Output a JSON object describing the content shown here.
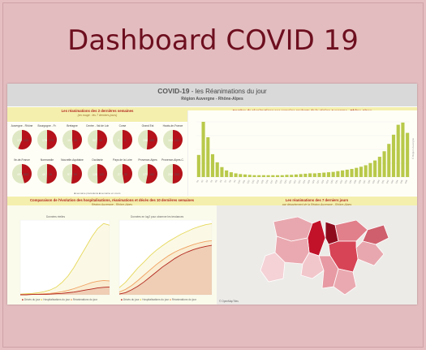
{
  "page": {
    "title": "Dashboard COVID 19"
  },
  "header": {
    "title_prefix": "COVID-19",
    "title_suffix": "- les Réanimations du jour",
    "region": "Région Auvergne - Rhône-Alpes"
  },
  "pies_panel": {
    "title": "Les réanimations des 2 dernières semaines",
    "subtitle": "(en rouge : les 7 derniers jours)",
    "items": [
      {
        "label": "Auvergne - Rhône",
        "a": 171,
        "b": 133
      },
      {
        "label": "Bourgogne - Fr.",
        "a": 176,
        "b": 174
      },
      {
        "label": "Bretagne",
        "a": 19,
        "b": 20
      },
      {
        "label": "Centre - Val de Loire",
        "a": 52,
        "b": 50
      },
      {
        "label": "Corse",
        "a": 3,
        "b": 3
      },
      {
        "label": "Grand Est",
        "a": 196,
        "b": 185
      },
      {
        "label": "Hauts-de-France",
        "a": 103,
        "b": 101
      },
      {
        "label": "Ile-de-France",
        "a": 497,
        "b": 583
      },
      {
        "label": "Normandie",
        "a": 40,
        "b": 39
      },
      {
        "label": "Nouvelle-Aquitaine",
        "a": 57,
        "b": 54
      },
      {
        "label": "Occitanie",
        "a": 120,
        "b": 122
      },
      {
        "label": "Pays de la Loire",
        "a": 27,
        "b": 30
      },
      {
        "label": "Provence-Alpes",
        "a": 171,
        "b": 152
      },
      {
        "label": "Provence-Alpes-C.",
        "a": 202,
        "b": 200
      }
    ],
    "legend": "■ semaine précédente   ■ semaine en cours"
  },
  "bars_panel": {
    "title": "Nombre de réanimations par semaine roulante de la région Auvergne - Rhône-Alpes",
    "side_label": "© Région Auvergne",
    "values": [
      60,
      150,
      108,
      62,
      40,
      27,
      18,
      13,
      10,
      8,
      7,
      6,
      5,
      5,
      5,
      5,
      5,
      5,
      5,
      6,
      6,
      7,
      8,
      9,
      10,
      10,
      11,
      12,
      13,
      14,
      16,
      18,
      20,
      22,
      25,
      28,
      32,
      38,
      45,
      55,
      70,
      90,
      115,
      142,
      148,
      120
    ]
  },
  "evol_panel": {
    "title": "Comparaison de l'évolution des hospitalisations, réanimations et décès des 10 dernières semaines",
    "subtitle": "Région Auvergne - Rhône-Alpes",
    "left_caption": "Données réelles",
    "right_caption": "Données en log2 pour observer les tendances",
    "legend": [
      "Décès du jour",
      "Hospitalisations du jour",
      "Réanimations du jour"
    ],
    "colors": {
      "deces": "#b3261e",
      "hosp": "#e6d85a",
      "rea": "#f0a060"
    },
    "series_left": {
      "hosp": [
        2,
        3,
        4,
        6,
        9,
        14,
        22,
        36,
        55,
        80,
        110,
        140,
        170,
        195,
        210,
        205
      ],
      "rea": [
        1,
        1,
        2,
        2,
        3,
        4,
        6,
        9,
        13,
        18,
        24,
        30,
        36,
        40,
        42,
        41
      ],
      "deces": [
        0,
        0,
        1,
        1,
        1,
        2,
        3,
        4,
        6,
        8,
        11,
        14,
        17,
        20,
        22,
        23
      ]
    },
    "series_right": {
      "hosp": [
        20,
        35,
        55,
        75,
        92,
        110,
        125,
        138,
        150,
        160,
        170,
        178,
        186,
        192,
        197,
        200
      ],
      "rea": [
        8,
        15,
        26,
        40,
        55,
        70,
        85,
        98,
        110,
        120,
        128,
        135,
        141,
        146,
        150,
        152
      ],
      "deces": [
        2,
        6,
        14,
        24,
        36,
        50,
        64,
        78,
        90,
        102,
        112,
        120,
        127,
        132,
        136,
        139
      ]
    }
  },
  "map_panel": {
    "title": "Les réanimations des 7 derniers jours",
    "subtitle": "par département de la Région Auvergne - Rhône-Alpes",
    "footer": "© OpenMapTiles"
  }
}
